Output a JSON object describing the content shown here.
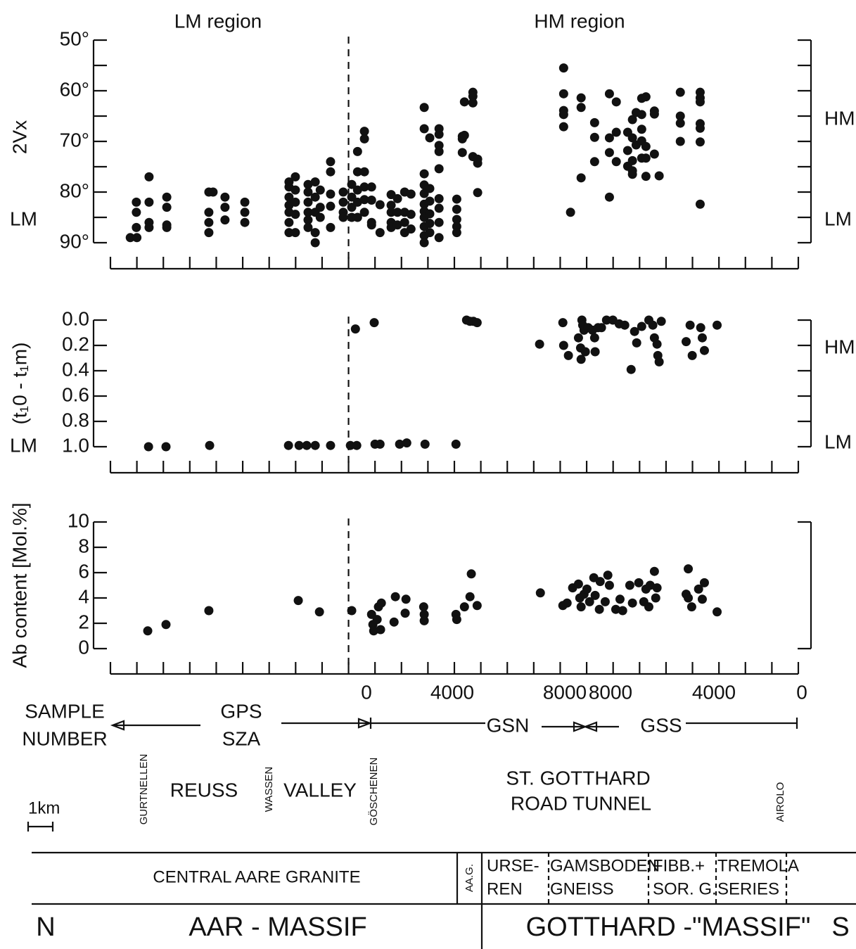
{
  "chart_data": [
    {
      "type": "scatter",
      "ylabel": "2Vx",
      "annotations": [
        "LM region",
        "HM region"
      ],
      "left_labels": [
        "LM"
      ],
      "right_labels": [
        "HM",
        "LM"
      ],
      "ylim": [
        50,
        90
      ],
      "y_inverted": true,
      "yticks": [
        {
          "value": 50,
          "label": "50°"
        },
        {
          "value": 60,
          "label": "60°"
        },
        {
          "value": 70,
          "label": "70°"
        },
        {
          "value": 80,
          "label": "80°"
        },
        {
          "value": 90,
          "label": "90°"
        }
      ],
      "yminor": [
        55,
        65,
        75,
        85
      ],
      "xlim": [
        0,
        26
      ],
      "xticks": [
        0,
        1,
        2,
        3,
        4,
        5,
        6,
        7,
        8,
        9,
        10,
        11,
        12,
        13,
        14,
        15,
        16,
        17,
        18,
        19,
        20,
        21,
        22,
        23,
        24,
        25,
        26
      ],
      "divider_x": 9,
      "color": "#111111",
      "x": [
        0.75,
        1.0,
        0.98,
        0.98,
        0.98,
        1.46,
        1.46,
        1.46,
        1.46,
        2.13,
        2.13,
        2.13,
        2.13,
        3.72,
        3.72,
        3.72,
        3.72,
        3.88,
        4.33,
        4.33,
        4.33,
        5.08,
        5.08,
        5.08,
        6.75,
        6.75,
        6.75,
        6.75,
        6.75,
        6.75,
        6.75,
        6.99,
        6.99,
        6.99,
        6.99,
        6.99,
        7.47,
        7.47,
        7.47,
        7.47,
        7.47,
        7.47,
        7.74,
        7.74,
        7.74,
        7.74,
        7.74,
        7.93,
        7.93,
        7.93,
        8.32,
        8.32,
        8.32,
        8.32,
        8.32,
        8.8,
        8.8,
        8.8,
        8.8,
        9.12,
        9.12,
        9.12,
        9.12,
        9.34,
        9.34,
        9.34,
        9.34,
        9.34,
        9.6,
        9.6,
        9.6,
        9.6,
        9.6,
        9.6,
        9.87,
        9.87,
        9.87,
        9.87,
        10.19,
        10.19,
        10.61,
        10.61,
        10.61,
        10.61,
        10.61,
        10.85,
        10.85,
        10.85,
        11.12,
        11.12,
        11.12,
        11.12,
        11.36,
        11.36,
        11.36,
        11.86,
        11.86,
        11.86,
        11.86,
        11.86,
        11.86,
        11.86,
        11.86,
        11.86,
        11.86,
        11.86,
        12.07,
        12.07,
        12.07,
        12.07,
        12.07,
        12.07,
        12.42,
        12.42,
        12.42,
        12.42,
        12.42,
        12.42,
        12.42,
        12.42,
        12.42,
        13.09,
        13.09,
        13.09,
        13.09,
        13.09,
        13.3,
        13.3,
        13.3,
        13.38,
        13.38,
        13.7,
        13.7,
        13.7,
        13.7,
        13.88,
        13.88,
        13.88,
        17.13,
        17.13,
        17.13,
        17.13,
        17.13,
        17.39,
        17.79,
        17.79,
        17.79,
        18.3,
        18.3,
        18.3,
        18.86,
        18.86,
        18.86,
        18.86,
        19.12,
        19.12,
        19.12,
        19.55,
        19.55,
        19.55,
        19.73,
        19.73,
        19.73,
        19.73,
        19.73,
        19.87,
        19.87,
        20.08,
        20.08,
        20.08,
        20.08,
        20.08,
        20.24,
        20.24,
        20.24,
        20.24,
        20.56,
        20.56,
        20.56,
        20.74,
        21.54,
        21.54,
        21.54,
        21.54,
        22.29,
        22.29,
        22.29,
        22.29,
        22.29,
        22.29,
        22.29
      ],
      "values": [
        89,
        89,
        82,
        84,
        87,
        77,
        82,
        86,
        87,
        81,
        83,
        86.5,
        87,
        80,
        84,
        86,
        88,
        80,
        81,
        83,
        85.5,
        82,
        84,
        86,
        78,
        79,
        81,
        82.6,
        84,
        86,
        88,
        77,
        79.6,
        82,
        84.4,
        88,
        78.5,
        80,
        82,
        84,
        85.5,
        87,
        78,
        81,
        84,
        88,
        90,
        79.6,
        83,
        85,
        74,
        76,
        80.4,
        82.8,
        87,
        80,
        82,
        84,
        85,
        78.5,
        81,
        83,
        85,
        72,
        76,
        79.6,
        82,
        85,
        68,
        69.5,
        76,
        79,
        81.5,
        84,
        79,
        81.6,
        86,
        86.5,
        82.5,
        88,
        80.5,
        82.6,
        84,
        86,
        87,
        81.3,
        84,
        86.5,
        80,
        84,
        86,
        88,
        80.4,
        84.4,
        87.3,
        63.3,
        67.5,
        76.4,
        78.6,
        80.3,
        82.4,
        83.8,
        85,
        86.8,
        88.6,
        90,
        69.3,
        79.3,
        81.8,
        84.3,
        86.2,
        88,
        67.5,
        68.6,
        70.8,
        72,
        75.4,
        81.3,
        83.2,
        86,
        89,
        81.4,
        83.4,
        85.4,
        86.8,
        88,
        69,
        69.5,
        72.2,
        62.2,
        68.8,
        60.3,
        61.1,
        62.4,
        73,
        73.5,
        74.3,
        80.1,
        55.5,
        60.6,
        63.9,
        64.7,
        67.1,
        84,
        61.4,
        63.3,
        77.2,
        66.3,
        69.2,
        74,
        60.6,
        69.3,
        72.2,
        81,
        62.2,
        68.2,
        74,
        68.2,
        71.8,
        74.9,
        65.7,
        69.3,
        73.8,
        75.8,
        76.5,
        64.3,
        70.7,
        61.5,
        64.7,
        67.6,
        69.9,
        73.3,
        61.2,
        71,
        73.3,
        76.9,
        64,
        64.6,
        72.5,
        76.8,
        60.3,
        65,
        66.4,
        70,
        60.3,
        61.4,
        62.2,
        66.5,
        67.4,
        70.1,
        82.4
      ]
    },
    {
      "type": "scatter",
      "ylabel": "(t₁0 - t₁m)",
      "left_labels": [
        "LM"
      ],
      "right_labels": [
        "HM",
        "LM"
      ],
      "ylim": [
        0,
        1
      ],
      "y_inverted": true,
      "yticks": [
        {
          "value": 0,
          "label": "0.0"
        },
        0.2,
        0.4,
        0.6,
        0.8,
        {
          "value": 1,
          "label": "1.0"
        }
      ],
      "xlim": [
        0,
        26
      ],
      "xticks": [
        0,
        1,
        2,
        3,
        4,
        5,
        6,
        7,
        8,
        9,
        10,
        11,
        12,
        13,
        14,
        15,
        16,
        17,
        18,
        19,
        20,
        21,
        22,
        23,
        24,
        25,
        26
      ],
      "divider_x": 9,
      "color": "#111111",
      "x": [
        1.44,
        2.1,
        3.75,
        6.73,
        7.13,
        7.42,
        7.74,
        8.32,
        9.07,
        9.31,
        10.0,
        10.19,
        10.93,
        11.2,
        11.89,
        13.06,
        9.26,
        9.97,
        13.46,
        13.59,
        13.72,
        13.86,
        16.22,
        17.1,
        17.13,
        17.31,
        17.69,
        17.77,
        17.79,
        17.82,
        17.85,
        17.9,
        17.95,
        18.06,
        18.22,
        18.3,
        18.32,
        18.43,
        18.56,
        18.75,
        18.99,
        19.23,
        19.44,
        19.68,
        19.81,
        19.89,
        20.08,
        20.35,
        20.5,
        20.56,
        20.66,
        20.69,
        20.74,
        20.82,
        21.76,
        21.91,
        21.99,
        22.31,
        22.37,
        22.45,
        22.93
      ],
      "values": [
        1,
        1,
        0.99,
        0.99,
        0.99,
        0.99,
        0.99,
        0.99,
        0.99,
        0.99,
        0.98,
        0.98,
        0.98,
        0.97,
        0.98,
        0.98,
        0.07,
        0.02,
        0,
        0.01,
        0.01,
        0.02,
        0.19,
        0.02,
        0.2,
        0.28,
        0.14,
        0.22,
        0.31,
        0,
        0.04,
        0.08,
        0.25,
        0.06,
        0.08,
        0.14,
        0.25,
        0.06,
        0.06,
        0,
        0,
        0.03,
        0.04,
        0.39,
        0.09,
        0.18,
        0.05,
        0,
        0.04,
        0.14,
        0.19,
        0.28,
        0.33,
        0.01,
        0.17,
        0.04,
        0.28,
        0.06,
        0.14,
        0.24,
        0.04
      ]
    },
    {
      "type": "scatter",
      "ylabel": "Ab content [Mol.%]",
      "ylim": [
        0,
        10
      ],
      "y_inverted": false,
      "yticks": [
        0,
        2,
        4,
        6,
        8,
        10
      ],
      "xlim": [
        0,
        26
      ],
      "xticks": [
        0,
        1,
        2,
        3,
        4,
        5,
        6,
        7,
        8,
        9,
        10,
        11,
        12,
        13,
        14,
        15,
        16,
        17,
        18,
        19,
        20,
        21,
        22,
        23,
        24,
        25,
        26
      ],
      "divider_x": 9,
      "color": "#111111",
      "x": [
        1.41,
        2.1,
        3.72,
        7.1,
        7.9,
        9.12,
        9.87,
        9.92,
        9.95,
        10.08,
        10.13,
        10.24,
        10.21,
        10.72,
        10.77,
        11.14,
        11.17,
        11.84,
        11.86,
        11.86,
        13.06,
        13.09,
        13.38,
        13.59,
        13.64,
        13.86,
        16.25,
        17.1,
        17.26,
        17.47,
        17.69,
        17.74,
        17.79,
        17.9,
        18.01,
        18.11,
        18.27,
        18.32,
        18.48,
        18.51,
        18.7,
        18.8,
        18.86,
        19.1,
        19.26,
        19.36,
        19.63,
        19.73,
        19.97,
        20.16,
        20.24,
        20.35,
        20.4,
        20.56,
        20.61,
        20.66,
        21.84,
        21.76,
        21.84,
        21.97,
        22.23,
        22.37,
        22.45,
        22.93
      ],
      "values": [
        1.4,
        1.9,
        3.0,
        3.8,
        2.9,
        3.0,
        2.7,
        1.9,
        1.4,
        2.3,
        3.3,
        3.6,
        1.5,
        2.1,
        4.1,
        2.8,
        3.9,
        3.3,
        2.7,
        2.2,
        2.7,
        2.3,
        3.3,
        4.1,
        5.9,
        3.4,
        4.4,
        3.4,
        3.6,
        4.8,
        5.1,
        4.0,
        3.3,
        4.3,
        4.7,
        3.7,
        5.6,
        4.2,
        3.1,
        5.3,
        3.7,
        5.8,
        5.0,
        3.1,
        3.9,
        3.0,
        5.0,
        3.6,
        5.2,
        3.7,
        4.7,
        3.3,
        5.0,
        6.1,
        4.0,
        4.8,
        6.3,
        4.3,
        4.0,
        3.3,
        4.7,
        3.9,
        5.2,
        2.9
      ]
    }
  ],
  "sample_axis": {
    "title": [
      "SAMPLE",
      "NUMBER"
    ],
    "numbers": [
      "0",
      "4000",
      "8000",
      "8000",
      "4000",
      "0"
    ],
    "series": [
      "GPS",
      "SZA",
      "GSN",
      "GSS"
    ]
  },
  "places": {
    "vertical": [
      "GURTNELLEN",
      "WASSEN",
      "GÖSCHENEN",
      "AIROLO"
    ],
    "words": [
      "REUSS",
      "VALLEY",
      "ST. GOTTHARD",
      "ROAD TUNNEL"
    ],
    "scale": "1km"
  },
  "geology": {
    "units": [
      "CENTRAL  AARE  GRANITE",
      "AA.G.",
      "URSE-",
      "REN",
      "GAMSBODEN",
      "GNEISS",
      "FIBB.+",
      "SOR. G.",
      "TREMOLA",
      "SERIES"
    ],
    "bottom": [
      "N",
      "AAR - MASSIF",
      "GOTTHARD -\"MASSIF\"",
      "S"
    ]
  }
}
